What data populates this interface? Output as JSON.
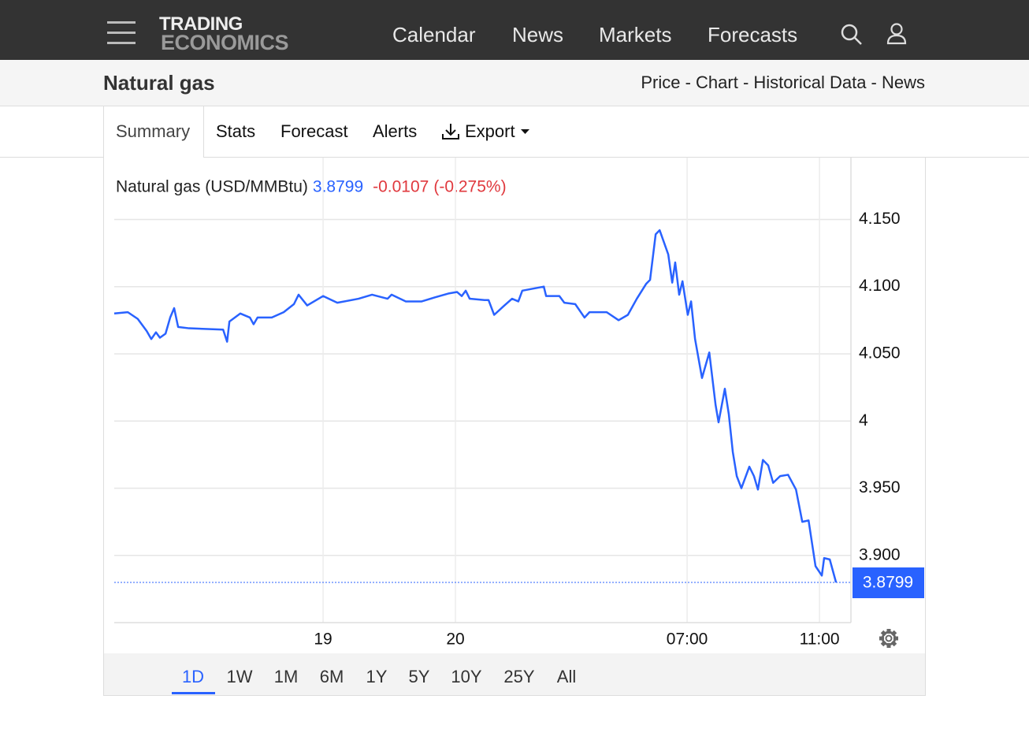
{
  "nav": {
    "logo_top": "TRADING",
    "logo_bottom": "ECONOMICS",
    "links": [
      "Calendar",
      "News",
      "Markets",
      "Forecasts"
    ]
  },
  "header": {
    "title": "Natural gas",
    "links": "Price - Chart - Historical Data - News"
  },
  "tabs": [
    "Summary",
    "Stats",
    "Forecast",
    "Alerts",
    "Export"
  ],
  "chart_data": {
    "type": "line",
    "change": -0.0107,
    "change_pct": "(-0.275%)",
    "x": [
      -10.31,
      -9.9,
      -9.6,
      -9.33,
      -9.19,
      -9.05,
      -8.93,
      -8.76,
      -8.62,
      -8.5,
      -8.38,
      -8.05,
      -7.02,
      -6.9,
      -6.83,
      -6.5,
      -6.21,
      -6.1,
      -5.98,
      -5.55,
      -5.19,
      -4.88,
      -4.74,
      -4.48,
      -4,
      -3.57,
      -2.93,
      -2.52,
      -2.05,
      -1.93,
      -1.5,
      -1.02,
      -0.62,
      -0.19,
      0.05,
      0.19,
      0.31,
      0.43,
      0.88,
      1,
      1.17,
      1.48,
      1.71,
      1.9,
      2.02,
      2.67,
      2.74,
      3.14,
      3.29,
      3.62,
      3.9,
      4.05,
      4.57,
      4.93,
      5.21,
      5.48,
      5.76,
      5.88,
      6.05,
      6.17,
      6.43,
      6.55,
      6.64,
      6.76,
      6.86,
      7.02,
      7.12,
      7.24,
      7.45,
      7.67,
      7.86,
      7.95,
      8.14,
      8.26,
      8.38,
      8.5,
      8.64,
      8.88,
      9.02,
      9.14,
      9.29,
      9.45,
      9.6,
      9.81,
      10.05,
      10.29,
      10.48,
      10.67,
      10.88,
      11.07,
      11.14,
      11.31,
      11.5
    ],
    "series": [
      {
        "name": "Natural gas (USD/MMBtu)",
        "color": "#2962ff",
        "values": [
          4.08,
          4.081,
          4.076,
          4.067,
          4.061,
          4.066,
          4.062,
          4.065,
          4.077,
          4.084,
          4.07,
          4.069,
          4.068,
          4.059,
          4.074,
          4.08,
          4.077,
          4.072,
          4.077,
          4.077,
          4.081,
          4.087,
          4.094,
          4.086,
          4.093,
          4.088,
          4.091,
          4.094,
          4.091,
          4.094,
          4.089,
          4.089,
          4.092,
          4.095,
          4.096,
          4.093,
          4.097,
          4.091,
          4.09,
          4.09,
          4.079,
          4.086,
          4.091,
          4.089,
          4.097,
          4.1,
          4.093,
          4.093,
          4.088,
          4.087,
          4.077,
          4.081,
          4.081,
          4.075,
          4.079,
          4.091,
          4.102,
          4.105,
          4.139,
          4.142,
          4.124,
          4.103,
          4.118,
          4.094,
          4.104,
          4.079,
          4.089,
          4.061,
          4.032,
          4.051,
          4.012,
          3.999,
          4.024,
          4.005,
          3.977,
          3.959,
          3.95,
          3.966,
          3.959,
          3.949,
          3.971,
          3.967,
          3.954,
          3.959,
          3.96,
          3.949,
          3.925,
          3.926,
          3.892,
          3.885,
          3.898,
          3.897,
          3.8799
        ]
      }
    ],
    "xlim": [
      -10.31,
      11.95
    ],
    "xticks": [
      {
        "value": -4,
        "label": "19"
      },
      {
        "value": 0,
        "label": "20"
      },
      {
        "value": 7,
        "label": "07:00"
      },
      {
        "value": 11,
        "label": "11:00"
      }
    ],
    "ylim": [
      3.85,
      4.196
    ],
    "yticks": [
      {
        "value": 4.15,
        "label": "4.150"
      },
      {
        "value": 4.1,
        "label": "4.100"
      },
      {
        "value": 4.05,
        "label": "4.050"
      },
      4,
      {
        "value": 3.95,
        "label": "3.950"
      },
      {
        "value": 3.9,
        "label": "3.900"
      }
    ],
    "grid": true
  },
  "ranges": [
    "1D",
    "1W",
    "1M",
    "6M",
    "1Y",
    "5Y",
    "10Y",
    "25Y",
    "All"
  ]
}
